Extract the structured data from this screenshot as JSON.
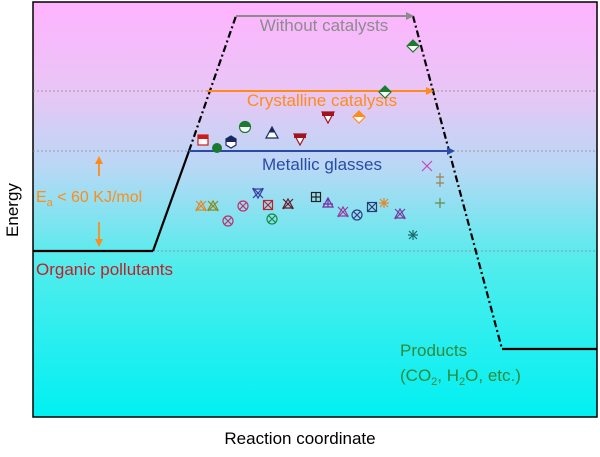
{
  "axes": {
    "ylabel": "Energy",
    "xlabel": "Reaction coordinate"
  },
  "levels": {
    "without_catalysts": "Without catalysts",
    "crystalline_catalysts": "Crystalline catalysts",
    "metallic_glasses": "Metallic glasses"
  },
  "labels": {
    "reactants": "Organic pollutants",
    "products_line1": "Products",
    "products_line2_pre": "(CO",
    "products_sub1": "2",
    "products_line2_mid": ", H",
    "products_sub2": "2",
    "products_line2_post": "O, etc.)",
    "ea_pre": "E",
    "ea_sub": "a",
    "ea_post": " < 60 KJ/mol"
  },
  "colors": {
    "background_top": "#ffb3ff",
    "background_bottom": "#00f0f0",
    "without_catalysts": "#8c8c8c",
    "crystalline_catalysts": "#ff8c1a",
    "metallic_glasses": "#2a4aa8",
    "reactants_label": "#c0202a",
    "products_label": "#2e8b3a",
    "ea_label": "#ff8c1a",
    "profile_line": "#000000"
  }
}
